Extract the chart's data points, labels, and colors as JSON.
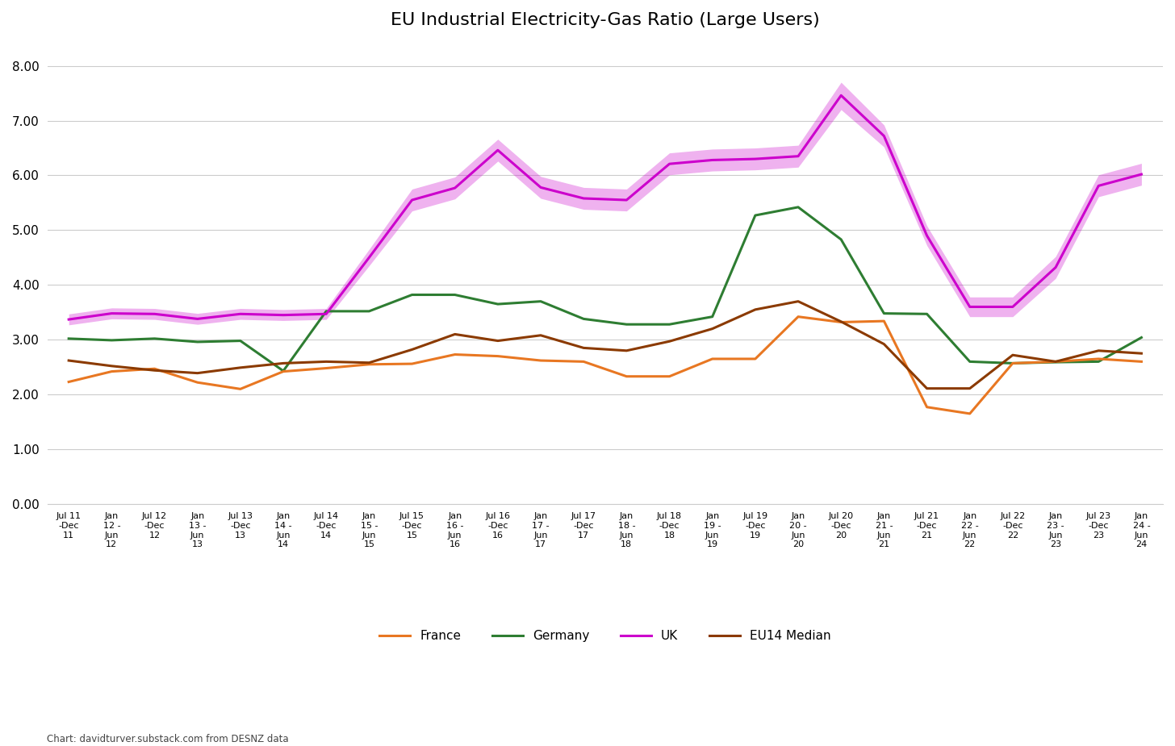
{
  "title": "EU Industrial Electricity-Gas Ratio (Large Users)",
  "ylim": [
    0.0,
    8.5
  ],
  "yticks": [
    0.0,
    1.0,
    2.0,
    3.0,
    4.0,
    5.0,
    6.0,
    7.0,
    8.0
  ],
  "ytick_labels": [
    "0.00",
    "1.00",
    "2.00",
    "3.00",
    "4.00",
    "5.00",
    "6.00",
    "7.00",
    "8.00"
  ],
  "xtick_labels": [
    "Jul 11\n-Dec\n11",
    "Jan\n12 -\nJun\n12",
    "Jul 12\n-Dec\n12",
    "Jan\n13 -\nJun\n13",
    "Jul 13\n-Dec\n13",
    "Jan\n14 -\nJun\n14",
    "Jul 14\n-Dec\n14",
    "Jan\n15 -\nJun\n15",
    "Jul 15\n-Dec\n15",
    "Jan\n16 -\nJun\n16",
    "Jul 16\n-Dec\n16",
    "Jan\n17 -\nJun\n17",
    "Jul 17\n-Dec\n17",
    "Jan\n18 -\nJun\n18",
    "Jul 18\n-Dec\n18",
    "Jan\n19 -\nJun\n19",
    "Jul 19\n-Dec\n19",
    "Jan\n20 -\nJun\n20",
    "Jul 20\n-Dec\n20",
    "Jan\n21 -\nJun\n21",
    "Jul 21\n-Dec\n21",
    "Jan\n22 -\nJun\n22",
    "Jul 22\n-Dec\n22",
    "Jan\n23 -\nJun\n23",
    "Jul 23\n-Dec\n23",
    "Jan\n24 -\nJun\n24"
  ],
  "france_color": "#E87722",
  "germany_color": "#2E7D32",
  "uk_color": "#CC00CC",
  "eu14_color": "#8B3A00",
  "france": [
    2.23,
    2.42,
    2.47,
    2.22,
    2.1,
    2.42,
    2.48,
    2.55,
    2.56,
    2.73,
    2.7,
    2.62,
    2.6,
    2.33,
    2.33,
    2.65,
    2.65,
    3.42,
    3.32,
    3.34,
    1.77,
    1.65,
    2.57,
    2.6,
    2.65,
    2.6
  ],
  "germany": [
    3.02,
    2.99,
    3.02,
    2.96,
    2.98,
    2.43,
    3.52,
    3.52,
    3.82,
    3.82,
    3.65,
    3.7,
    3.38,
    3.28,
    3.28,
    3.42,
    5.27,
    5.42,
    4.83,
    3.48,
    3.47,
    2.6,
    2.57,
    2.59,
    2.6,
    3.04
  ],
  "uk": [
    3.37,
    3.48,
    3.47,
    3.38,
    3.47,
    3.45,
    3.47,
    4.5,
    5.55,
    5.77,
    6.46,
    5.78,
    5.58,
    5.55,
    6.21,
    6.28,
    6.3,
    6.35,
    7.46,
    6.72,
    4.9,
    3.6,
    3.6,
    4.32,
    5.81,
    6.02
  ],
  "uk_band_low": [
    3.27,
    3.38,
    3.37,
    3.28,
    3.37,
    3.35,
    3.37,
    4.35,
    5.35,
    5.57,
    6.26,
    5.58,
    5.38,
    5.35,
    6.01,
    6.08,
    6.1,
    6.15,
    7.2,
    6.52,
    4.72,
    3.42,
    3.42,
    4.12,
    5.61,
    5.82
  ],
  "uk_band_high": [
    3.47,
    3.58,
    3.57,
    3.48,
    3.57,
    3.55,
    3.57,
    4.65,
    5.75,
    5.97,
    6.66,
    5.98,
    5.78,
    5.75,
    6.41,
    6.48,
    6.5,
    6.55,
    7.7,
    6.92,
    5.08,
    3.78,
    3.78,
    4.52,
    6.01,
    6.22
  ],
  "eu14": [
    2.62,
    2.52,
    2.44,
    2.39,
    2.49,
    2.57,
    2.6,
    2.58,
    2.82,
    3.1,
    2.98,
    3.08,
    2.85,
    2.8,
    2.97,
    3.2,
    3.55,
    3.7,
    3.33,
    2.92,
    2.11,
    2.11,
    2.72,
    2.6,
    2.8,
    2.75
  ],
  "background_color": "#FFFFFF",
  "grid_color": "#CCCCCC",
  "footer_text": "Chart: davidturver.substack.com from DESNZ data"
}
